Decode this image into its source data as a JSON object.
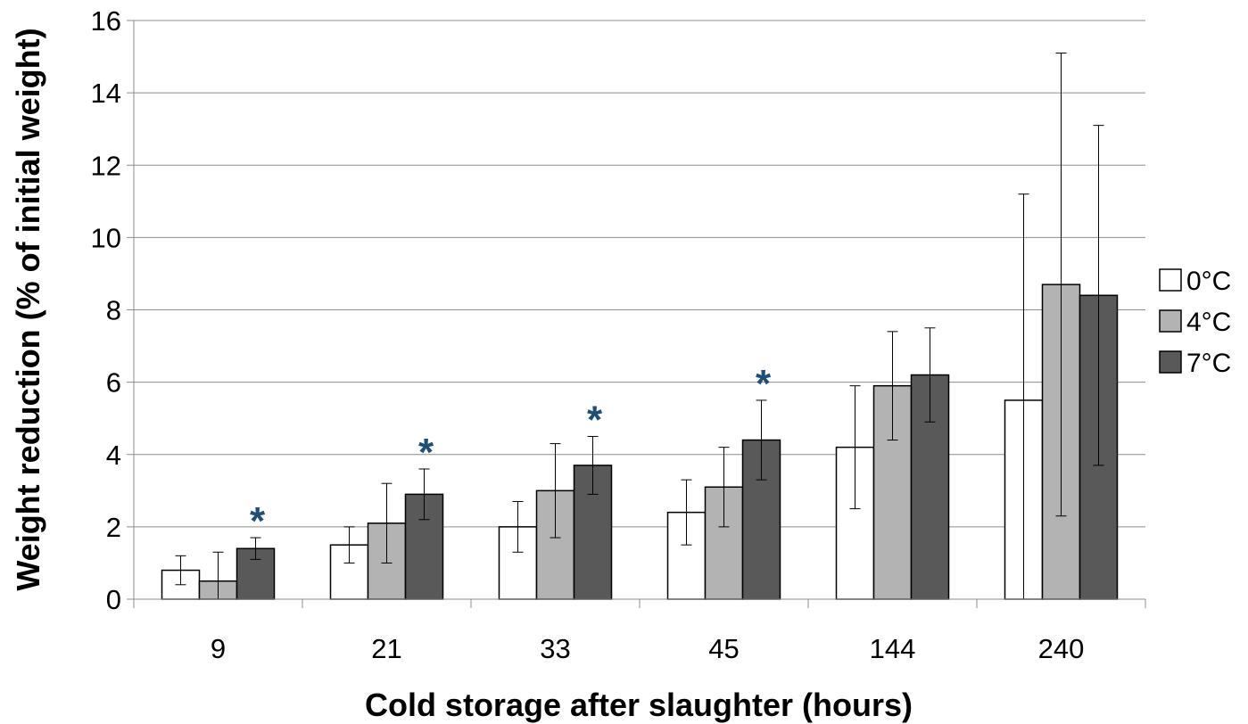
{
  "chart_data": {
    "type": "bar",
    "title": "",
    "xlabel": "Cold storage after slaughter (hours)",
    "ylabel": "Weight reduction (% of initial weight)",
    "categories": [
      "9",
      "21",
      "33",
      "45",
      "144",
      "240"
    ],
    "ylim": [
      0,
      16
    ],
    "yticks": [
      0,
      2,
      4,
      6,
      8,
      10,
      12,
      14,
      16
    ],
    "grid": true,
    "legend_position": "right",
    "series": [
      {
        "name": "0°C",
        "color": "#ffffff",
        "values": [
          0.8,
          1.5,
          2.0,
          2.4,
          4.2,
          5.5
        ],
        "error_low": [
          0.4,
          1.0,
          1.3,
          1.5,
          2.5,
          0.0
        ],
        "error_high": [
          1.2,
          2.0,
          2.7,
          3.3,
          5.9,
          11.2
        ]
      },
      {
        "name": "4°C",
        "color": "#b3b3b3",
        "values": [
          0.5,
          2.1,
          3.0,
          3.1,
          5.9,
          8.7
        ],
        "error_low": [
          0.0,
          1.0,
          1.7,
          2.0,
          4.4,
          2.3
        ],
        "error_high": [
          1.3,
          3.2,
          4.3,
          4.2,
          7.4,
          15.1
        ]
      },
      {
        "name": "7°C",
        "color": "#595959",
        "values": [
          1.4,
          2.9,
          3.7,
          4.4,
          6.2,
          8.4
        ],
        "error_low": [
          1.1,
          2.2,
          2.9,
          3.3,
          4.9,
          3.7
        ],
        "error_high": [
          1.7,
          3.6,
          4.5,
          5.5,
          7.5,
          13.1
        ]
      }
    ],
    "annotations": {
      "text": "*",
      "color": "#1f4e79",
      "categories": [
        "9",
        "21",
        "33",
        "45"
      ]
    }
  }
}
